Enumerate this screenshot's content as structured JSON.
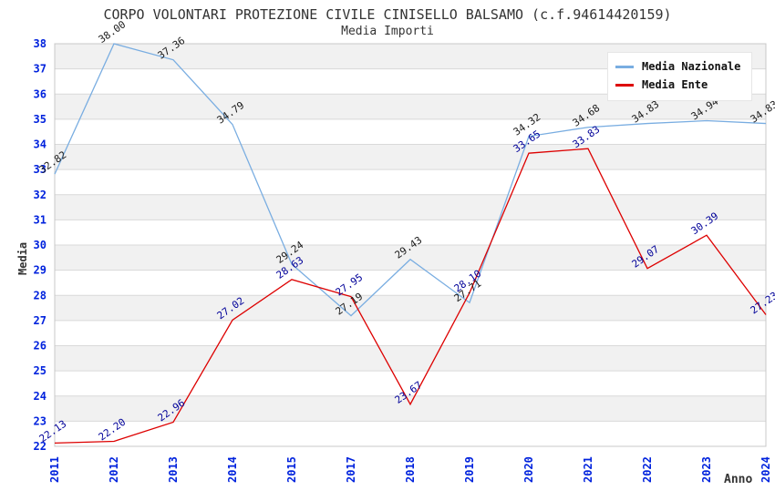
{
  "chart_data": {
    "type": "line",
    "title": "CORPO VOLONTARI PROTEZIONE CIVILE CINISELLO BALSAMO (c.f.94614420159)",
    "subtitle": "Media Importi",
    "xlabel": "Anno",
    "ylabel": "Media",
    "ylim": [
      22,
      38
    ],
    "y_tick_step": 1,
    "grid": "horizontal-bands",
    "legend_position": "top-right",
    "categories": [
      "2011",
      "2012",
      "2013",
      "2014",
      "2015",
      "2017",
      "2018",
      "2019",
      "2020",
      "2021",
      "2022",
      "2023",
      "2024"
    ],
    "series": [
      {
        "name": "Media Nazionale",
        "color": "#79ade1",
        "label_color": "#1a1a1a",
        "values": [
          32.82,
          38.0,
          37.36,
          34.79,
          29.24,
          27.19,
          29.43,
          27.71,
          34.32,
          34.68,
          34.83,
          34.94,
          34.83
        ]
      },
      {
        "name": "Media Ente",
        "color": "#dd0000",
        "label_color": "#000099",
        "values": [
          22.13,
          22.2,
          22.96,
          27.02,
          28.63,
          27.95,
          23.67,
          28.1,
          33.65,
          33.83,
          29.07,
          30.39,
          27.23
        ]
      }
    ],
    "axis_style": {
      "tick_color": "#0022dd",
      "band_color": "#f1f1f1",
      "gridline_color": "#d9d9d9",
      "frame_color": "#c8c8c8"
    }
  }
}
